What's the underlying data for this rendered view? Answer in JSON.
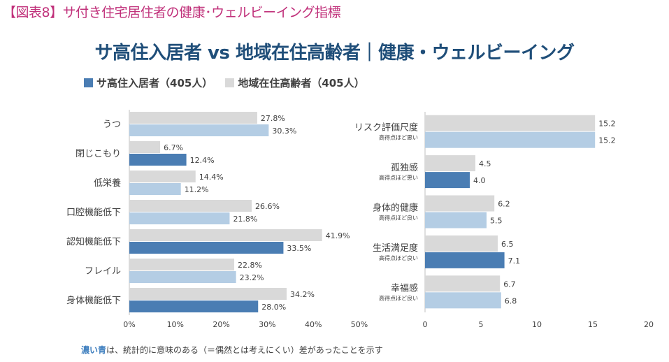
{
  "figure_label": "【図表8】サ付き住宅居住者の健康･ウェルビーイング指標",
  "main_title": "サ高住入居者 vs 地域在住高齢者｜健康・ウェルビーイング",
  "legend": {
    "series1": "サ高住入居者（405人）",
    "series2": "地域在住高齢者（405人）"
  },
  "colors": {
    "series1": "#b4cde4",
    "series1_significant": "#4a7db3",
    "series2": "#d9d9d9",
    "title": "#1f4e79",
    "figure_label": "#c0307a"
  },
  "footnote": {
    "emphasis": "濃い青",
    "text": "は、統計的に意味のある（＝偶然とは考えにくい）差があったことを示す"
  },
  "chart_data": [
    {
      "type": "bar",
      "orientation": "horizontal",
      "categories": [
        "うつ",
        "閉じこもり",
        "低栄養",
        "口腔機能低下",
        "認知機能低下",
        "フレイル",
        "身体機能低下"
      ],
      "series": [
        {
          "name": "地域在住高齢者（405人）",
          "values": [
            27.8,
            6.7,
            14.4,
            26.6,
            41.9,
            22.8,
            34.2
          ],
          "labels": [
            "27.8%",
            "6.7%",
            "14.4%",
            "26.6%",
            "41.9%",
            "22.8%",
            "34.2%"
          ]
        },
        {
          "name": "サ高住入居者（405人）",
          "values": [
            30.3,
            12.4,
            11.2,
            21.8,
            33.5,
            23.2,
            28.0
          ],
          "labels": [
            "30.3%",
            "12.4%",
            "11.2%",
            "21.8%",
            "33.5%",
            "23.2%",
            "28.0%"
          ],
          "significant": [
            false,
            true,
            false,
            false,
            true,
            false,
            true
          ]
        }
      ],
      "xlim": [
        0,
        50
      ],
      "xticks": [
        "0%",
        "10%",
        "20%",
        "30%",
        "40%",
        "50%"
      ]
    },
    {
      "type": "bar",
      "orientation": "horizontal",
      "categories": [
        "リスク評価尺度",
        "孤独感",
        "身体的健康",
        "生活満足度",
        "幸福感"
      ],
      "sublabels": [
        "高得点ほど悪い",
        "高得点ほど悪い",
        "高得点ほど良い",
        "高得点ほど良い",
        "高得点ほど良い"
      ],
      "series": [
        {
          "name": "地域在住高齢者（405人）",
          "values": [
            15.2,
            4.5,
            6.2,
            6.5,
            6.7
          ],
          "labels": [
            "15.2",
            "4.5",
            "6.2",
            "6.5",
            "6.7"
          ]
        },
        {
          "name": "サ高住入居者（405人）",
          "values": [
            15.2,
            4.0,
            5.5,
            7.1,
            6.8
          ],
          "labels": [
            "15.2",
            "4.0",
            "5.5",
            "7.1",
            "6.8"
          ],
          "significant": [
            false,
            true,
            false,
            true,
            false
          ]
        }
      ],
      "xlim": [
        0,
        20
      ],
      "xticks": [
        "0",
        "5",
        "10",
        "15",
        "20"
      ]
    }
  ]
}
